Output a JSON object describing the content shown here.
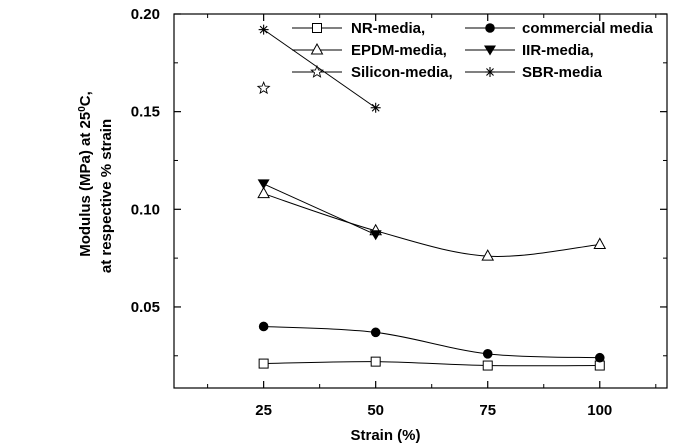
{
  "chart_data": {
    "type": "line",
    "title": "",
    "xlabel": "Strain (%)",
    "ylabel_line1": "Modulus (MPa) at 25",
    "ylabel_degree": "0",
    "ylabel_unit": "C,",
    "ylabel_line2": "at respective % strain",
    "x_ticks": [
      "25",
      "50",
      "75",
      "100"
    ],
    "y_ticks": [
      "0.05",
      "0.10",
      "0.15",
      "0.20"
    ],
    "xlim": [
      5,
      115
    ],
    "ylim": [
      0.0085,
      0.2
    ],
    "series": [
      {
        "name": "NR-media,",
        "marker": "square-open",
        "fit": "smooth",
        "x": [
          25,
          50,
          75,
          100
        ],
        "y": [
          0.021,
          0.022,
          0.02,
          0.02
        ]
      },
      {
        "name": "commercial media",
        "marker": "circle-filled",
        "fit": "smooth",
        "x": [
          25,
          50,
          75,
          100
        ],
        "y": [
          0.04,
          0.037,
          0.026,
          0.024
        ]
      },
      {
        "name": "EPDM-media,",
        "marker": "triangle-open",
        "fit": "smooth",
        "x": [
          25,
          50,
          75,
          100
        ],
        "y": [
          0.108,
          0.089,
          0.076,
          0.082
        ]
      },
      {
        "name": "IIR-media,",
        "marker": "triangle-down-filled",
        "fit": "straight",
        "x": [
          25,
          50
        ],
        "y": [
          0.113,
          0.087
        ]
      },
      {
        "name": "Silicon-media,",
        "marker": "star-open",
        "fit": "none",
        "x": [
          25
        ],
        "y": [
          0.162
        ]
      },
      {
        "name": "SBR-media",
        "marker": "asterisk",
        "fit": "straight",
        "x": [
          25,
          50
        ],
        "y": [
          0.192,
          0.152
        ]
      }
    ]
  }
}
